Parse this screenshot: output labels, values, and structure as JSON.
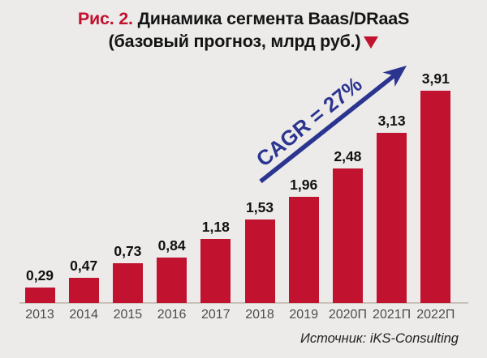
{
  "title": {
    "prefix": "Рис. 2.",
    "main": " Динамика сегмента Baas/DRaaS",
    "subtitle": "(базовый прогноз, млрд руб.)"
  },
  "annotation": {
    "cagr_label": "CAGR = 27%"
  },
  "source": "Источник: iKS-Consulting",
  "icons": {
    "down-triangle-icon": "red filled triangle pointing down",
    "trend-arrow-icon": "navy diagonal arrow pointing up-right"
  },
  "colors": {
    "background": "#ECEBE9",
    "bar_red": "#C11230",
    "accent_red": "#C11230",
    "arrow_navy": "#2B3590",
    "axis_line": "#C9C1B9",
    "tick_label_gray": "#4D4D4D",
    "value_label_black": "#111111"
  },
  "chart_data": {
    "type": "bar",
    "title": "Рис. 2. Динамика сегмента Baas/DRaaS (базовый прогноз, млрд руб.)",
    "xlabel": "",
    "ylabel": "млрд руб.",
    "ylim": [
      0,
      4.2
    ],
    "grid": false,
    "legend": "none",
    "categories": [
      "2013",
      "2014",
      "2015",
      "2016",
      "2017",
      "2018",
      "2019",
      "2020П",
      "2021П",
      "2022П"
    ],
    "values": [
      0.29,
      0.47,
      0.73,
      0.84,
      1.18,
      1.53,
      1.96,
      2.48,
      3.13,
      3.91
    ],
    "value_labels": [
      "0,29",
      "0,47",
      "0,73",
      "0,84",
      "1,18",
      "1,53",
      "1,96",
      "2,48",
      "3,13",
      "3,91"
    ],
    "annotations": [
      {
        "text": "CAGR = 27%",
        "color": "#2B3590",
        "rotation_deg": -39,
        "position": "diagonal along trend arrow"
      }
    ],
    "bar_color": "#C11230"
  }
}
